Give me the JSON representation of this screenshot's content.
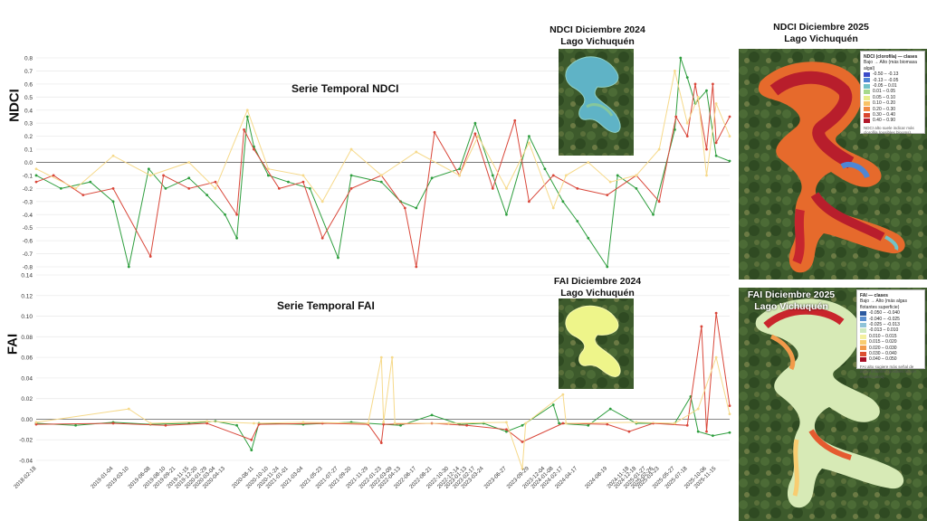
{
  "colors": {
    "series_green": "#2e9e3e",
    "series_red": "#d9473a",
    "series_yellow": "#f6d98a",
    "grid": "#ececec",
    "zero_line": "#777777"
  },
  "chart_data": [
    {
      "type": "line",
      "title": "Serie Temporal NDCI",
      "ylabel": "NDCI",
      "ylim": [
        -0.8,
        0.8
      ],
      "yticks": [
        "0.8",
        "0.7",
        "0.6",
        "0.5",
        "0.4",
        "0.3",
        "0.2",
        "0.1",
        "0.0",
        "-0.1",
        "-0.2",
        "-0.3",
        "-0.4",
        "-0.5",
        "-0.6",
        "-0.7",
        "-0.8"
      ],
      "grid": true,
      "x_range": [
        "2018-02-18",
        "2026-01-10"
      ],
      "series": [
        {
          "color": "series_green",
          "points": [
            [
              "2018-02-18",
              -0.1
            ],
            [
              "2018-06-01",
              -0.2
            ],
            [
              "2018-10-01",
              -0.15
            ],
            [
              "2019-01-04",
              -0.3
            ],
            [
              "2019-03-10",
              -0.8
            ],
            [
              "2019-06-01",
              -0.05
            ],
            [
              "2019-08-10",
              -0.2
            ],
            [
              "2019-11-15",
              -0.12
            ],
            [
              "2020-01-29",
              -0.25
            ],
            [
              "2020-04-13",
              -0.4
            ],
            [
              "2020-06-01",
              -0.58
            ],
            [
              "2020-07-15",
              0.35
            ],
            [
              "2020-08-11",
              0.12
            ],
            [
              "2020-10-10",
              -0.1
            ],
            [
              "2021-01-01",
              -0.15
            ],
            [
              "2021-04-01",
              -0.2
            ],
            [
              "2021-07-27",
              -0.73
            ],
            [
              "2021-09-20",
              -0.1
            ],
            [
              "2022-01-23",
              -0.15
            ],
            [
              "2022-04-13",
              -0.3
            ],
            [
              "2022-06-17",
              -0.35
            ],
            [
              "2022-08-21",
              -0.12
            ],
            [
              "2022-12-14",
              -0.05
            ],
            [
              "2023-02-17",
              0.3
            ],
            [
              "2023-05-01",
              -0.1
            ],
            [
              "2023-06-27",
              -0.4
            ],
            [
              "2023-09-29",
              0.2
            ],
            [
              "2023-12-04",
              -0.05
            ],
            [
              "2024-02-17",
              -0.3
            ],
            [
              "2024-04-17",
              -0.45
            ],
            [
              "2024-06-01",
              -0.58
            ],
            [
              "2024-08-19",
              -0.8
            ],
            [
              "2024-10-01",
              -0.1
            ],
            [
              "2024-12-18",
              -0.2
            ],
            [
              "2025-02-26",
              -0.4
            ],
            [
              "2025-05-27",
              0.25
            ],
            [
              "2025-06-20",
              0.8
            ],
            [
              "2025-07-18",
              0.65
            ],
            [
              "2025-08-20",
              0.45
            ],
            [
              "2025-10-06",
              0.55
            ],
            [
              "2025-11-15",
              0.05
            ],
            [
              "2026-01-10",
              0.01
            ]
          ]
        },
        {
          "color": "series_red",
          "points": [
            [
              "2018-02-18",
              -0.15
            ],
            [
              "2018-05-01",
              -0.1
            ],
            [
              "2018-09-01",
              -0.25
            ],
            [
              "2019-01-04",
              -0.2
            ],
            [
              "2019-06-08",
              -0.72
            ],
            [
              "2019-08-01",
              -0.1
            ],
            [
              "2019-11-15",
              -0.2
            ],
            [
              "2020-03-04",
              -0.15
            ],
            [
              "2020-06-01",
              -0.4
            ],
            [
              "2020-07-01",
              0.25
            ],
            [
              "2020-08-11",
              0.1
            ],
            [
              "2020-11-24",
              -0.2
            ],
            [
              "2021-03-04",
              -0.15
            ],
            [
              "2021-05-23",
              -0.58
            ],
            [
              "2021-09-20",
              -0.2
            ],
            [
              "2022-01-23",
              -0.1
            ],
            [
              "2022-05-01",
              -0.35
            ],
            [
              "2022-06-17",
              -0.8
            ],
            [
              "2022-09-01",
              0.23
            ],
            [
              "2022-12-14",
              -0.1
            ],
            [
              "2023-02-17",
              0.22
            ],
            [
              "2023-05-01",
              -0.2
            ],
            [
              "2023-08-01",
              0.32
            ],
            [
              "2023-09-29",
              -0.3
            ],
            [
              "2024-01-08",
              -0.1
            ],
            [
              "2024-04-17",
              -0.2
            ],
            [
              "2024-08-19",
              -0.25
            ],
            [
              "2024-12-18",
              -0.1
            ],
            [
              "2025-03-23",
              -0.3
            ],
            [
              "2025-06-01",
              0.35
            ],
            [
              "2025-07-18",
              0.2
            ],
            [
              "2025-08-20",
              0.6
            ],
            [
              "2025-10-06",
              0.1
            ],
            [
              "2025-11-01",
              0.6
            ],
            [
              "2025-11-15",
              0.15
            ],
            [
              "2026-01-10",
              0.35
            ]
          ]
        },
        {
          "color": "series_yellow",
          "points": [
            [
              "2018-02-18",
              -0.05
            ],
            [
              "2018-08-01",
              -0.2
            ],
            [
              "2019-01-04",
              0.05
            ],
            [
              "2019-06-08",
              -0.1
            ],
            [
              "2019-11-15",
              0.0
            ],
            [
              "2020-03-04",
              -0.2
            ],
            [
              "2020-07-15",
              0.4
            ],
            [
              "2020-10-10",
              -0.05
            ],
            [
              "2021-03-04",
              -0.1
            ],
            [
              "2021-05-23",
              -0.3
            ],
            [
              "2021-09-20",
              0.1
            ],
            [
              "2022-01-23",
              -0.1
            ],
            [
              "2022-06-17",
              0.08
            ],
            [
              "2022-12-14",
              -0.1
            ],
            [
              "2023-03-01",
              0.2
            ],
            [
              "2023-06-27",
              -0.2
            ],
            [
              "2023-09-29",
              0.15
            ],
            [
              "2024-01-08",
              -0.35
            ],
            [
              "2024-03-01",
              -0.1
            ],
            [
              "2024-06-01",
              0.0
            ],
            [
              "2024-09-01",
              -0.15
            ],
            [
              "2024-12-18",
              -0.1
            ],
            [
              "2025-03-23",
              0.1
            ],
            [
              "2025-05-27",
              0.7
            ],
            [
              "2025-07-18",
              0.3
            ],
            [
              "2025-09-01",
              0.5
            ],
            [
              "2025-10-06",
              -0.1
            ],
            [
              "2025-11-15",
              0.45
            ],
            [
              "2026-01-10",
              0.2
            ]
          ]
        }
      ]
    },
    {
      "type": "line",
      "title": "Serie Temporal FAI",
      "ylabel": "FAI",
      "ylim": [
        -0.04,
        0.14
      ],
      "yticks": [
        "0.14",
        "0.12",
        "0.10",
        "0.08",
        "0.06",
        "0.04",
        "0.02",
        "0.00",
        "-0.02",
        "-0.04"
      ],
      "grid": true,
      "x_range": [
        "2018-02-18",
        "2026-01-10"
      ],
      "xtick_labels": [
        "2018-02-18",
        "2019-01-04",
        "2019-03-10",
        "2019-06-08",
        "2019-08-10",
        "2019-09-21",
        "2019-11-15",
        "2019-12-20",
        "2020-01-29",
        "2020-03-04",
        "2020-04-13",
        "2020-08-11",
        "2020-10-10",
        "2020-11-24",
        "2021-01-01",
        "2021-03-04",
        "2021-05-23",
        "2021-07-27",
        "2021-09-20",
        "2021-11-29",
        "2022-01-23",
        "2022-03-09",
        "2022-04-13",
        "2022-06-17",
        "2022-08-21",
        "2022-10-30",
        "2022-12-14",
        "2023-01-13",
        "2023-02-17",
        "2023-03-24",
        "2023-06-27",
        "2023-09-29",
        "2023-12-04",
        "2024-01-08",
        "2024-02-17",
        "2024-04-17",
        "2024-08-19",
        "2024-11-18",
        "2024-12-18",
        "2025-01-27",
        "2025-02-26",
        "2025-03-23",
        "2025-05-27",
        "2025-07-18",
        "2025-10-06",
        "2025-11-15"
      ],
      "series": [
        {
          "color": "series_green",
          "points": [
            [
              "2018-02-18",
              -0.004
            ],
            [
              "2018-08-01",
              -0.006
            ],
            [
              "2019-01-04",
              -0.003
            ],
            [
              "2019-06-08",
              -0.005
            ],
            [
              "2019-11-15",
              -0.004
            ],
            [
              "2020-03-04",
              -0.002
            ],
            [
              "2020-06-01",
              -0.006
            ],
            [
              "2020-08-01",
              -0.03
            ],
            [
              "2020-09-01",
              -0.004
            ],
            [
              "2021-03-04",
              -0.005
            ],
            [
              "2021-09-20",
              -0.003
            ],
            [
              "2022-04-13",
              -0.006
            ],
            [
              "2022-08-21",
              0.004
            ],
            [
              "2022-12-14",
              -0.005
            ],
            [
              "2023-03-24",
              -0.004
            ],
            [
              "2023-06-27",
              -0.012
            ],
            [
              "2023-09-01",
              -0.006
            ],
            [
              "2024-01-08",
              0.014
            ],
            [
              "2024-02-01",
              -0.004
            ],
            [
              "2024-06-01",
              -0.006
            ],
            [
              "2024-09-01",
              0.01
            ],
            [
              "2024-12-18",
              -0.004
            ],
            [
              "2025-05-27",
              -0.004
            ],
            [
              "2025-08-01",
              0.022
            ],
            [
              "2025-09-01",
              -0.012
            ],
            [
              "2025-11-01",
              -0.016
            ],
            [
              "2026-01-10",
              -0.013
            ]
          ]
        },
        {
          "color": "series_red",
          "points": [
            [
              "2018-02-18",
              -0.005
            ],
            [
              "2019-01-04",
              -0.004
            ],
            [
              "2019-08-10",
              -0.006
            ],
            [
              "2020-01-29",
              -0.004
            ],
            [
              "2020-08-01",
              -0.02
            ],
            [
              "2020-09-01",
              -0.005
            ],
            [
              "2021-05-23",
              -0.004
            ],
            [
              "2021-11-29",
              -0.005
            ],
            [
              "2022-01-23",
              -0.023
            ],
            [
              "2022-02-01",
              -0.005
            ],
            [
              "2022-08-21",
              -0.004
            ],
            [
              "2023-01-13",
              -0.006
            ],
            [
              "2023-06-27",
              -0.01
            ],
            [
              "2023-09-01",
              -0.022
            ],
            [
              "2024-02-17",
              -0.004
            ],
            [
              "2024-08-19",
              -0.005
            ],
            [
              "2024-11-18",
              -0.012
            ],
            [
              "2025-02-26",
              -0.004
            ],
            [
              "2025-07-18",
              -0.006
            ],
            [
              "2025-09-15",
              0.09
            ],
            [
              "2025-10-06",
              -0.012
            ],
            [
              "2025-11-15",
              0.103
            ],
            [
              "2026-01-10",
              0.013
            ]
          ]
        },
        {
          "color": "series_yellow",
          "points": [
            [
              "2018-02-18",
              -0.003
            ],
            [
              "2019-03-10",
              0.01
            ],
            [
              "2019-06-08",
              -0.004
            ],
            [
              "2020-01-29",
              -0.002
            ],
            [
              "2020-08-11",
              -0.004
            ],
            [
              "2021-03-04",
              -0.003
            ],
            [
              "2021-11-29",
              -0.004
            ],
            [
              "2022-01-23",
              0.06
            ],
            [
              "2022-02-01",
              -0.003
            ],
            [
              "2022-03-09",
              0.06
            ],
            [
              "2022-03-20",
              -0.004
            ],
            [
              "2022-10-30",
              -0.004
            ],
            [
              "2023-06-27",
              -0.003
            ],
            [
              "2023-09-01",
              -0.048
            ],
            [
              "2023-09-15",
              -0.004
            ],
            [
              "2024-02-17",
              0.024
            ],
            [
              "2024-03-01",
              -0.004
            ],
            [
              "2024-12-18",
              -0.003
            ],
            [
              "2025-05-27",
              -0.004
            ],
            [
              "2025-09-01",
              0.01
            ],
            [
              "2025-11-15",
              0.06
            ],
            [
              "2026-01-10",
              0.005
            ]
          ]
        }
      ]
    }
  ],
  "maps": {
    "ndci_2024": {
      "title_line1": "NDCI Diciembre 2024",
      "title_line2": "Lago Vichuquén"
    },
    "ndci_2025": {
      "title_line1": "NDCI Diciembre 2025",
      "title_line2": "Lago Vichuquén",
      "legend_title": "NDCI (clorofila) — clases",
      "legend_subtitle": "Bajo → Alto (más biomasa algal)",
      "legend_items": [
        {
          "label": "-0.50 – -0.13",
          "color": "#3b4bc8"
        },
        {
          "label": "-0.13 – -0.05",
          "color": "#4f86d4"
        },
        {
          "label": "-0.05 – 0.01",
          "color": "#72c2c6"
        },
        {
          "label": "0.01 – 0.05",
          "color": "#a6d98c"
        },
        {
          "label": "0.05 – 0.10",
          "color": "#e8ec8a"
        },
        {
          "label": "0.10 – 0.20",
          "color": "#f8c266"
        },
        {
          "label": "0.20 – 0.30",
          "color": "#f08a45"
        },
        {
          "label": "0.30 – 0.40",
          "color": "#d9452e"
        },
        {
          "label": "0.40 – 0.90",
          "color": "#b2182b"
        }
      ],
      "legend_note": "NDCI alto suele indicar más clorofila (posibles blooms)."
    },
    "fai_2024": {
      "title_line1": "FAI Diciembre 2024",
      "title_line2": "Lago Vichuquén"
    },
    "fai_2025": {
      "title_line1": "FAI Diciembre 2025",
      "title_line2": "Lago Vichuquén",
      "legend_title": "FAI — clases",
      "legend_subtitle": "Bajo → Alto (más algas flotantes superficie)",
      "legend_items": [
        {
          "label": "-0.050 – -0.040",
          "color": "#2c5aa0"
        },
        {
          "label": "-0.040 – -0.025",
          "color": "#5b8fd0"
        },
        {
          "label": "-0.025 – -0.013",
          "color": "#8fc3d8"
        },
        {
          "label": "-0.013 – 0.010",
          "color": "#cfeac0"
        },
        {
          "label": "0.010 – 0.015",
          "color": "#f4f0a0"
        },
        {
          "label": "0.015 – 0.020",
          "color": "#f8cc70"
        },
        {
          "label": "0.020 – 0.030",
          "color": "#f29a4a"
        },
        {
          "label": "0.030 – 0.040",
          "color": "#dc4f31"
        },
        {
          "label": "0.040 – 0.050",
          "color": "#a80f26"
        }
      ],
      "legend_note": "FAI alto sugiere más señal de algas flotantes (posibles bloom superficiales)."
    }
  }
}
